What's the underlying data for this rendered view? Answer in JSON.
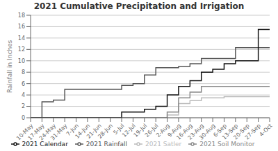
{
  "chart_data": {
    "type": "step",
    "title": "2021 Cumulative Precipitation and Irrigation",
    "y_label": "Rainfall in Inches",
    "categories": [
      "10-May",
      "17-May",
      "24-May",
      "31-May",
      "7-Jun",
      "14-Jun",
      "21-Jun",
      "28-Jun",
      "5-Jul",
      "12-Jul",
      "19-Jul",
      "26-Jul",
      "2-Aug",
      "9-Aug",
      "16-Aug",
      "23-Aug",
      "30-Aug",
      "6-Sep",
      "13-Sep",
      "20-Sep",
      "27-Sep",
      "4-Oct"
    ],
    "series": [
      {
        "name": "2021 Rainfall",
        "color": "#555555",
        "values": [
          0,
          2.8,
          3.1,
          5.0,
          5.0,
          5.0,
          5.0,
          5.0,
          5.7,
          6.0,
          7.5,
          8.8,
          8.8,
          9.0,
          9.5,
          10.4,
          10.4,
          10.4,
          12.3,
          12.3,
          12.3,
          12.3
        ]
      },
      {
        "name": "2021 Satler",
        "color": "#bbbbbb",
        "values": [
          0,
          0,
          0,
          0,
          0,
          0,
          0,
          0,
          0,
          0,
          0,
          0,
          0.5,
          2.5,
          3.0,
          3.5,
          3.5,
          3.7,
          3.7,
          3.7,
          3.7,
          3.7
        ]
      },
      {
        "name": "2021 Soil Monitor",
        "color": "#888888",
        "values": [
          0,
          0,
          0,
          0,
          0,
          0,
          0,
          0,
          0,
          0,
          0,
          0,
          1.0,
          3.5,
          4.5,
          5.5,
          5.5,
          5.5,
          5.5,
          5.5,
          5.5,
          5.5
        ]
      },
      {
        "name": "2021 Calendar",
        "color": "#111111",
        "values": [
          0,
          0,
          0,
          0,
          0,
          0,
          0,
          0,
          1.0,
          1.0,
          1.5,
          2.0,
          4.0,
          5.5,
          6.5,
          8.0,
          8.5,
          9.5,
          10.0,
          10.0,
          15.5,
          15.5
        ]
      }
    ],
    "ylim": [
      0,
      18
    ],
    "yticks": [
      0,
      2,
      4,
      6,
      8,
      10,
      12,
      14,
      16,
      18
    ],
    "grid": true,
    "legend": "bottom"
  }
}
